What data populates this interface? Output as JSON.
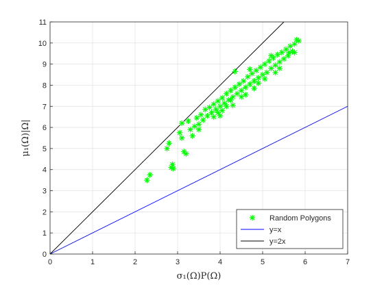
{
  "chart_data": {
    "type": "scatter",
    "title": "",
    "xlabel": "σ₁(Ω)P(Ω)",
    "ylabel": "μ₁(Ω)|Ω|",
    "xlim": [
      0,
      7
    ],
    "ylim": [
      0,
      11
    ],
    "x_ticks": [
      0,
      1,
      2,
      3,
      4,
      5,
      6,
      7
    ],
    "y_ticks": [
      0,
      1,
      2,
      3,
      4,
      5,
      6,
      7,
      8,
      9,
      10,
      11
    ],
    "x_tick_labels": [
      "0",
      "1",
      "2",
      "3",
      "4",
      "5",
      "6",
      "7"
    ],
    "y_tick_labels": [
      "0",
      "1",
      "2",
      "3",
      "4",
      "5",
      "6",
      "7",
      "8",
      "9",
      "10",
      "11"
    ],
    "grid": true,
    "legend_position": "bottom-right",
    "series": [
      {
        "name": "Random Polygons",
        "kind": "scatter",
        "marker": "asterisk",
        "color": "#00ff00",
        "points": [
          [
            2.28,
            3.5
          ],
          [
            2.35,
            3.75
          ],
          [
            2.75,
            5.0
          ],
          [
            2.8,
            5.25
          ],
          [
            2.85,
            4.1
          ],
          [
            2.88,
            4.25
          ],
          [
            2.9,
            4.05
          ],
          [
            3.05,
            5.75
          ],
          [
            3.1,
            5.5
          ],
          [
            3.15,
            4.85
          ],
          [
            3.2,
            4.75
          ],
          [
            3.1,
            6.2
          ],
          [
            3.25,
            6.3
          ],
          [
            3.3,
            5.9
          ],
          [
            3.4,
            6.05
          ],
          [
            3.45,
            6.45
          ],
          [
            3.5,
            6.15
          ],
          [
            3.55,
            6.6
          ],
          [
            3.6,
            6.35
          ],
          [
            3.65,
            6.85
          ],
          [
            3.7,
            6.55
          ],
          [
            3.75,
            6.95
          ],
          [
            3.8,
            6.7
          ],
          [
            3.85,
            7.1
          ],
          [
            3.9,
            6.85
          ],
          [
            3.95,
            7.25
          ],
          [
            4.0,
            7.0
          ],
          [
            4.05,
            7.4
          ],
          [
            4.1,
            7.15
          ],
          [
            4.15,
            7.6
          ],
          [
            4.2,
            7.3
          ],
          [
            4.25,
            7.75
          ],
          [
            4.3,
            7.45
          ],
          [
            4.35,
            8.65
          ],
          [
            4.35,
            7.9
          ],
          [
            4.4,
            7.6
          ],
          [
            4.45,
            8.05
          ],
          [
            4.5,
            7.75
          ],
          [
            4.55,
            8.2
          ],
          [
            4.6,
            7.9
          ],
          [
            4.65,
            8.4
          ],
          [
            4.7,
            8.05
          ],
          [
            4.75,
            8.55
          ],
          [
            4.8,
            8.2
          ],
          [
            4.85,
            8.7
          ],
          [
            4.9,
            8.35
          ],
          [
            4.95,
            8.85
          ],
          [
            5.0,
            8.5
          ],
          [
            5.05,
            9.0
          ],
          [
            5.1,
            8.6
          ],
          [
            5.15,
            9.15
          ],
          [
            5.2,
            8.8
          ],
          [
            5.25,
            9.3
          ],
          [
            5.3,
            8.95
          ],
          [
            5.35,
            9.45
          ],
          [
            5.4,
            9.1
          ],
          [
            5.45,
            9.55
          ],
          [
            5.5,
            9.25
          ],
          [
            5.55,
            9.7
          ],
          [
            5.6,
            9.4
          ],
          [
            5.65,
            9.85
          ],
          [
            5.7,
            9.6
          ],
          [
            5.75,
            9.95
          ],
          [
            5.8,
            10.15
          ],
          [
            5.85,
            10.1
          ],
          [
            5.75,
            9.55
          ],
          [
            5.62,
            9.55
          ],
          [
            5.4,
            8.8
          ],
          [
            4.9,
            8.1
          ],
          [
            4.5,
            7.45
          ],
          [
            4.25,
            7.3
          ],
          [
            4.0,
            6.55
          ],
          [
            3.85,
            6.5
          ],
          [
            4.05,
            6.8
          ],
          [
            4.6,
            7.55
          ],
          [
            5.05,
            8.3
          ],
          [
            5.3,
            8.6
          ],
          [
            4.3,
            7.05
          ],
          [
            3.35,
            5.6
          ],
          [
            3.5,
            5.9
          ],
          [
            4.8,
            7.85
          ],
          [
            4.15,
            7.0
          ],
          [
            5.2,
            9.4
          ],
          [
            4.7,
            8.75
          ],
          [
            3.95,
            6.7
          ]
        ]
      },
      {
        "name": "y=x",
        "kind": "line",
        "color": "#0000ff",
        "points": [
          [
            0,
            0
          ],
          [
            7,
            7
          ]
        ]
      },
      {
        "name": "y=2x",
        "kind": "line",
        "color": "#000000",
        "points": [
          [
            0,
            0
          ],
          [
            5.5,
            11
          ]
        ]
      }
    ]
  }
}
